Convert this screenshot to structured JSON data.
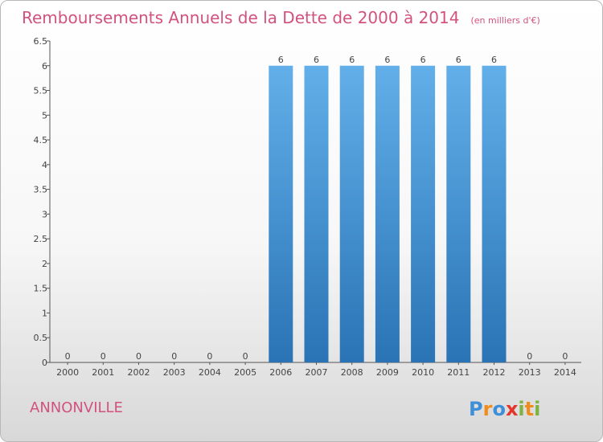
{
  "title": "Remboursements Annuels de la Dette de 2000 à 2014",
  "title_unit": "(en milliers d'€)",
  "commune": "ANNONVILLE",
  "logo": {
    "text": "Proxiti",
    "letters": [
      {
        "ch": "P",
        "color": "#3f8fd8"
      },
      {
        "ch": "r",
        "color": "#f08c1c"
      },
      {
        "ch": "o",
        "color": "#3f8fd8"
      },
      {
        "ch": "x",
        "color": "#e2362c"
      },
      {
        "ch": "i",
        "color": "#7cb342"
      },
      {
        "ch": "t",
        "color": "#f08c1c"
      },
      {
        "ch": "i",
        "color": "#7cb342"
      }
    ]
  },
  "colors": {
    "bar_top": "#62afe9",
    "bar_bottom": "#2a73b5",
    "title": "#d2527f",
    "axis": "#555555"
  },
  "chart_data": {
    "type": "bar",
    "categories": [
      "2000",
      "2001",
      "2002",
      "2003",
      "2004",
      "2005",
      "2006",
      "2007",
      "2008",
      "2009",
      "2010",
      "2011",
      "2012",
      "2013",
      "2014"
    ],
    "values": [
      0,
      0,
      0,
      0,
      0,
      0,
      6,
      6,
      6,
      6,
      6,
      6,
      6,
      0,
      0
    ],
    "data_labels": [
      "0",
      "0",
      "0",
      "0",
      "0",
      "0",
      "6",
      "6",
      "6",
      "6",
      "6",
      "6",
      "6",
      "0",
      "0"
    ],
    "y_ticks": [
      "0",
      "0.5",
      "1",
      "1.5",
      "2",
      "2.5",
      "3",
      "3.5",
      "4",
      "4.5",
      "5",
      "5.5",
      "6",
      "6.5"
    ],
    "ylim": [
      0,
      6.5
    ],
    "grid": false,
    "legend": "none"
  }
}
